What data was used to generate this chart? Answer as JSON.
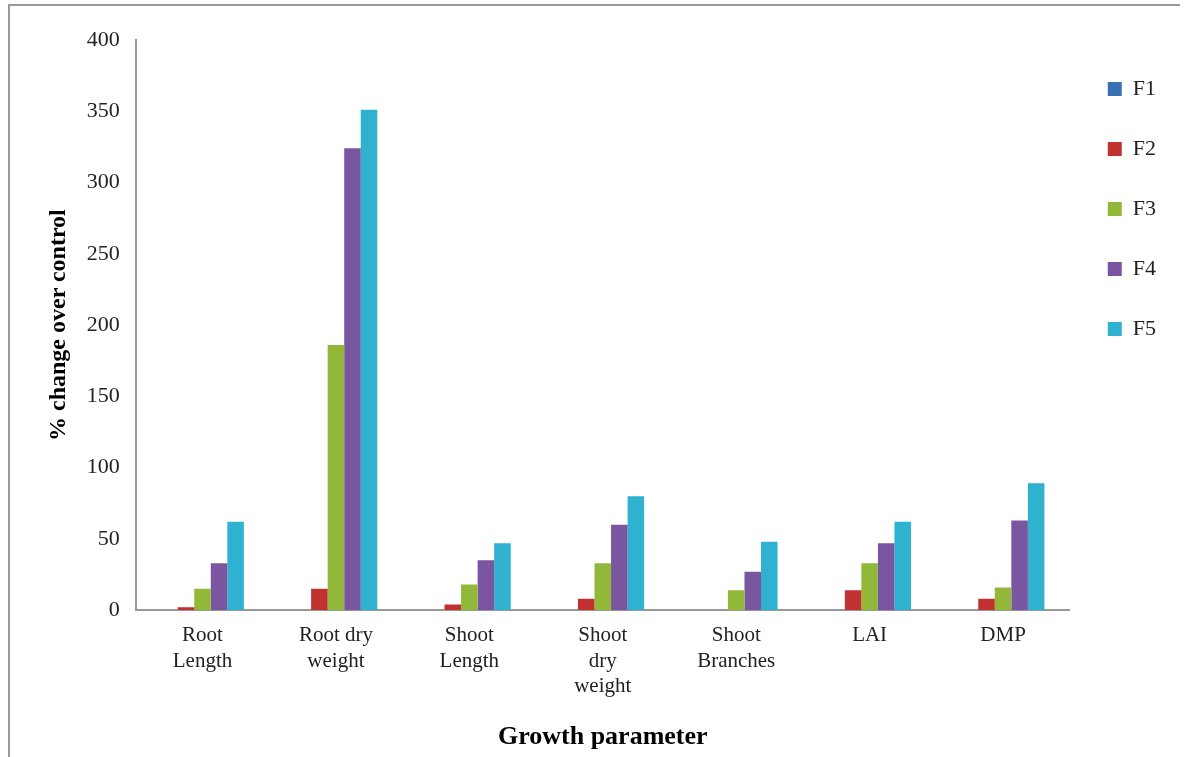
{
  "chart_data": {
    "type": "bar",
    "xlabel": "Growth parameter",
    "ylabel": "% change over control",
    "categories": [
      "Root Length",
      "Root dry weight",
      "Shoot Length",
      "Shoot dry weight",
      "Shoot Branches",
      "LAI",
      "DMP"
    ],
    "series": [
      {
        "name": "F1",
        "color": "#3a6fb0",
        "values": [
          0,
          0,
          0,
          0,
          0,
          0,
          0
        ]
      },
      {
        "name": "F2",
        "color": "#c0312f",
        "values": [
          2,
          15,
          4,
          8,
          0,
          14,
          8
        ]
      },
      {
        "name": "F3",
        "color": "#92b83a",
        "values": [
          15,
          186,
          18,
          33,
          14,
          33,
          16
        ]
      },
      {
        "name": "F4",
        "color": "#7a55a0",
        "values": [
          33,
          324,
          35,
          60,
          27,
          47,
          63
        ]
      },
      {
        "name": "F5",
        "color": "#2fb2d0",
        "values": [
          62,
          351,
          47,
          80,
          48,
          62,
          89
        ]
      }
    ],
    "ylim": [
      0,
      400
    ],
    "yticks": [
      0,
      50,
      100,
      150,
      200,
      250,
      300,
      350,
      400
    ],
    "grid": false,
    "legend": "right"
  }
}
